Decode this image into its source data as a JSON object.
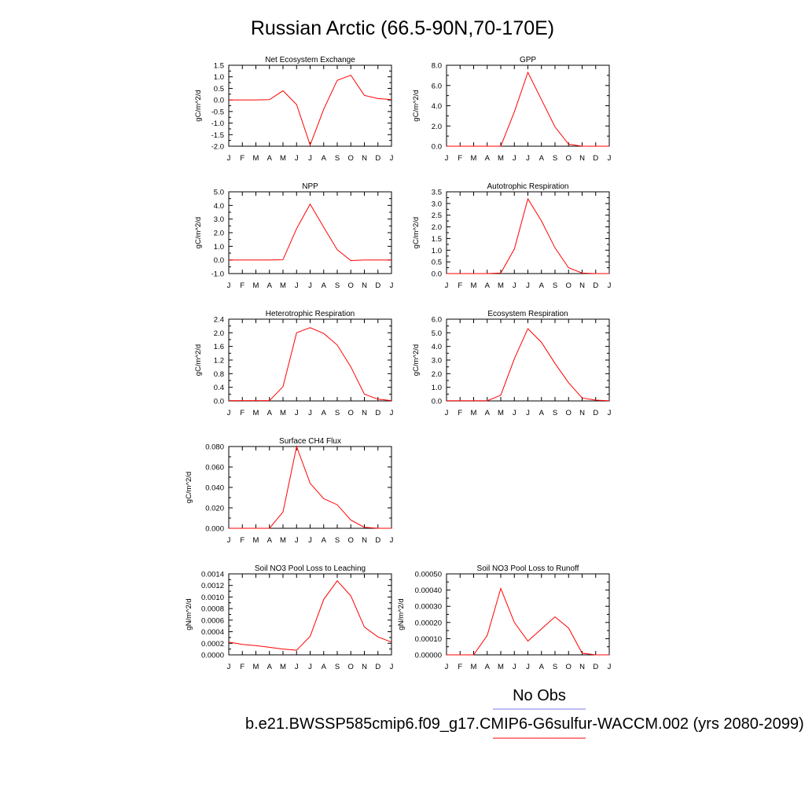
{
  "title": "Russian Arctic (66.5-90N,70-170E)",
  "legend": {
    "obs_label": "No Obs",
    "obs_color": "#7777ee",
    "model_label": "b.e21.BWSSP585cmip6.f09_g17.CMIP6-G6sulfur-WACCM.002 (yrs 2080-2099)",
    "model_color": "#ff0000"
  },
  "chart_data": [
    {
      "type": "line",
      "title": "Net Ecosystem Exchange",
      "ylabel": "gC/m^2/d",
      "xlabel": "",
      "categories": [
        "J",
        "F",
        "M",
        "A",
        "M",
        "J",
        "J",
        "A",
        "S",
        "O",
        "N",
        "D",
        "J"
      ],
      "ylim": [
        -2.0,
        1.5
      ],
      "yticks": [
        -2.0,
        -1.5,
        -1.0,
        -0.5,
        0.0,
        0.5,
        1.0,
        1.5
      ],
      "ytick_labels": [
        "-2.0",
        "-1.5",
        "-1.0",
        "-0.5",
        "0.0",
        "0.5",
        "1.0",
        "1.5"
      ],
      "series": [
        {
          "values": [
            0.0,
            0.0,
            0.0,
            0.01,
            0.4,
            -0.2,
            -1.95,
            -0.4,
            0.85,
            1.07,
            0.2,
            0.06,
            0.02
          ]
        }
      ],
      "grid": false
    },
    {
      "type": "line",
      "title": "GPP",
      "ylabel": "gC/m^2/d",
      "xlabel": "",
      "categories": [
        "J",
        "F",
        "M",
        "A",
        "M",
        "J",
        "J",
        "A",
        "S",
        "O",
        "N",
        "D",
        "J"
      ],
      "ylim": [
        0.0,
        8.0
      ],
      "yticks": [
        0.0,
        2.0,
        4.0,
        6.0,
        8.0
      ],
      "ytick_labels": [
        "0.0",
        "2.0",
        "4.0",
        "6.0",
        "8.0"
      ],
      "series": [
        {
          "values": [
            0.0,
            0.0,
            0.0,
            0.0,
            0.0,
            3.4,
            7.3,
            4.6,
            1.9,
            0.2,
            0.0,
            0.0,
            0.0
          ]
        }
      ],
      "grid": false
    },
    {
      "type": "line",
      "title": "NPP",
      "ylabel": "gC/m^2/d",
      "xlabel": "",
      "categories": [
        "J",
        "F",
        "M",
        "A",
        "M",
        "J",
        "J",
        "A",
        "S",
        "O",
        "N",
        "D",
        "J"
      ],
      "ylim": [
        -1.0,
        5.0
      ],
      "yticks": [
        -1.0,
        0.0,
        1.0,
        2.0,
        3.0,
        4.0,
        5.0
      ],
      "ytick_labels": [
        "-1.0",
        "0.0",
        "1.0",
        "2.0",
        "3.0",
        "4.0",
        "5.0"
      ],
      "series": [
        {
          "values": [
            0.0,
            0.0,
            0.0,
            0.0,
            0.02,
            2.3,
            4.1,
            2.4,
            0.75,
            -0.05,
            0.0,
            0.0,
            0.0
          ]
        }
      ],
      "grid": false
    },
    {
      "type": "line",
      "title": "Autotrophic Respiration",
      "ylabel": "gC/m^2/d",
      "xlabel": "",
      "categories": [
        "J",
        "F",
        "M",
        "A",
        "M",
        "J",
        "J",
        "A",
        "S",
        "O",
        "N",
        "D",
        "J"
      ],
      "ylim": [
        0.0,
        3.5
      ],
      "yticks": [
        0.0,
        0.5,
        1.0,
        1.5,
        2.0,
        2.5,
        3.0,
        3.5
      ],
      "ytick_labels": [
        "0.0",
        "0.5",
        "1.0",
        "1.5",
        "2.0",
        "2.5",
        "3.0",
        "3.5"
      ],
      "series": [
        {
          "values": [
            0.0,
            0.0,
            0.0,
            0.0,
            0.02,
            1.05,
            3.2,
            2.25,
            1.1,
            0.25,
            0.02,
            0.0,
            0.0
          ]
        }
      ],
      "grid": false
    },
    {
      "type": "line",
      "title": "Heterotrophic Respiration",
      "ylabel": "gC/m^2/d",
      "xlabel": "",
      "categories": [
        "J",
        "F",
        "M",
        "A",
        "M",
        "J",
        "J",
        "A",
        "S",
        "O",
        "N",
        "D",
        "J"
      ],
      "ylim": [
        0.0,
        2.4
      ],
      "yticks": [
        0.0,
        0.4,
        0.8,
        1.2,
        1.6,
        2.0,
        2.4
      ],
      "ytick_labels": [
        "0.0",
        "0.4",
        "0.8",
        "1.2",
        "1.6",
        "2.0",
        "2.4"
      ],
      "series": [
        {
          "values": [
            0.01,
            0.01,
            0.01,
            0.01,
            0.42,
            2.0,
            2.15,
            1.98,
            1.64,
            1.0,
            0.2,
            0.05,
            0.01
          ]
        }
      ],
      "grid": false
    },
    {
      "type": "line",
      "title": "Ecosystem Respiration",
      "ylabel": "gC/m^2/d",
      "xlabel": "",
      "categories": [
        "J",
        "F",
        "M",
        "A",
        "M",
        "J",
        "J",
        "A",
        "S",
        "O",
        "N",
        "D",
        "J"
      ],
      "ylim": [
        0.0,
        6.0
      ],
      "yticks": [
        0.0,
        1.0,
        2.0,
        3.0,
        4.0,
        5.0,
        6.0
      ],
      "ytick_labels": [
        "0.0",
        "1.0",
        "2.0",
        "3.0",
        "4.0",
        "5.0",
        "6.0"
      ],
      "series": [
        {
          "values": [
            0.01,
            0.01,
            0.01,
            0.01,
            0.42,
            3.1,
            5.3,
            4.3,
            2.75,
            1.33,
            0.22,
            0.06,
            0.01
          ]
        }
      ],
      "grid": false
    },
    {
      "type": "line",
      "title": "Surface CH4 Flux",
      "ylabel": "gC/m^2/d",
      "xlabel": "",
      "categories": [
        "J",
        "F",
        "M",
        "A",
        "M",
        "J",
        "J",
        "A",
        "S",
        "O",
        "N",
        "D",
        "J"
      ],
      "ylim": [
        0.0,
        0.08
      ],
      "yticks": [
        0.0,
        0.02,
        0.04,
        0.06,
        0.08
      ],
      "ytick_labels": [
        "0.000",
        "0.020",
        "0.040",
        "0.060",
        "0.080"
      ],
      "series": [
        {
          "values": [
            0.0,
            0.0,
            0.0,
            0.0,
            0.016,
            0.08,
            0.044,
            0.029,
            0.023,
            0.008,
            0.001,
            0.0,
            0.0
          ]
        }
      ],
      "grid": false
    },
    {
      "type": "line",
      "title": "Soil NO3 Pool Loss to Leaching",
      "ylabel": "gN/m^2/d",
      "xlabel": "",
      "categories": [
        "J",
        "F",
        "M",
        "A",
        "M",
        "J",
        "J",
        "A",
        "S",
        "O",
        "N",
        "D",
        "J"
      ],
      "ylim": [
        0.0,
        0.0014
      ],
      "yticks": [
        0.0,
        0.0002,
        0.0004,
        0.0006,
        0.0008,
        0.001,
        0.0012,
        0.0014
      ],
      "ytick_labels": [
        "0.0000",
        "0.0002",
        "0.0004",
        "0.0006",
        "0.0008",
        "0.0010",
        "0.0012",
        "0.0014"
      ],
      "series": [
        {
          "values": [
            0.00022,
            0.00018,
            0.00016,
            0.00013,
            0.0001,
            8e-05,
            0.00032,
            0.00096,
            0.00128,
            0.00102,
            0.00048,
            0.00031,
            0.00022
          ]
        }
      ],
      "grid": false
    },
    {
      "type": "line",
      "title": "Soil NO3 Pool Loss to Runoff",
      "ylabel": "gN/m^2/d",
      "xlabel": "",
      "categories": [
        "J",
        "F",
        "M",
        "A",
        "M",
        "J",
        "J",
        "A",
        "S",
        "O",
        "N",
        "D",
        "J"
      ],
      "ylim": [
        0.0,
        0.0005
      ],
      "yticks": [
        0.0,
        0.0001,
        0.0002,
        0.0003,
        0.0004,
        0.0005
      ],
      "ytick_labels": [
        "0.00000",
        "0.00010",
        "0.00020",
        "0.00030",
        "0.00040",
        "0.00050"
      ],
      "series": [
        {
          "values": [
            0.0,
            0.0,
            0.0,
            0.00012,
            0.00041,
            0.0002,
            8.5e-05,
            0.00016,
            0.000235,
            0.000165,
            1e-05,
            0.0,
            0.0
          ]
        }
      ],
      "grid": false
    }
  ]
}
